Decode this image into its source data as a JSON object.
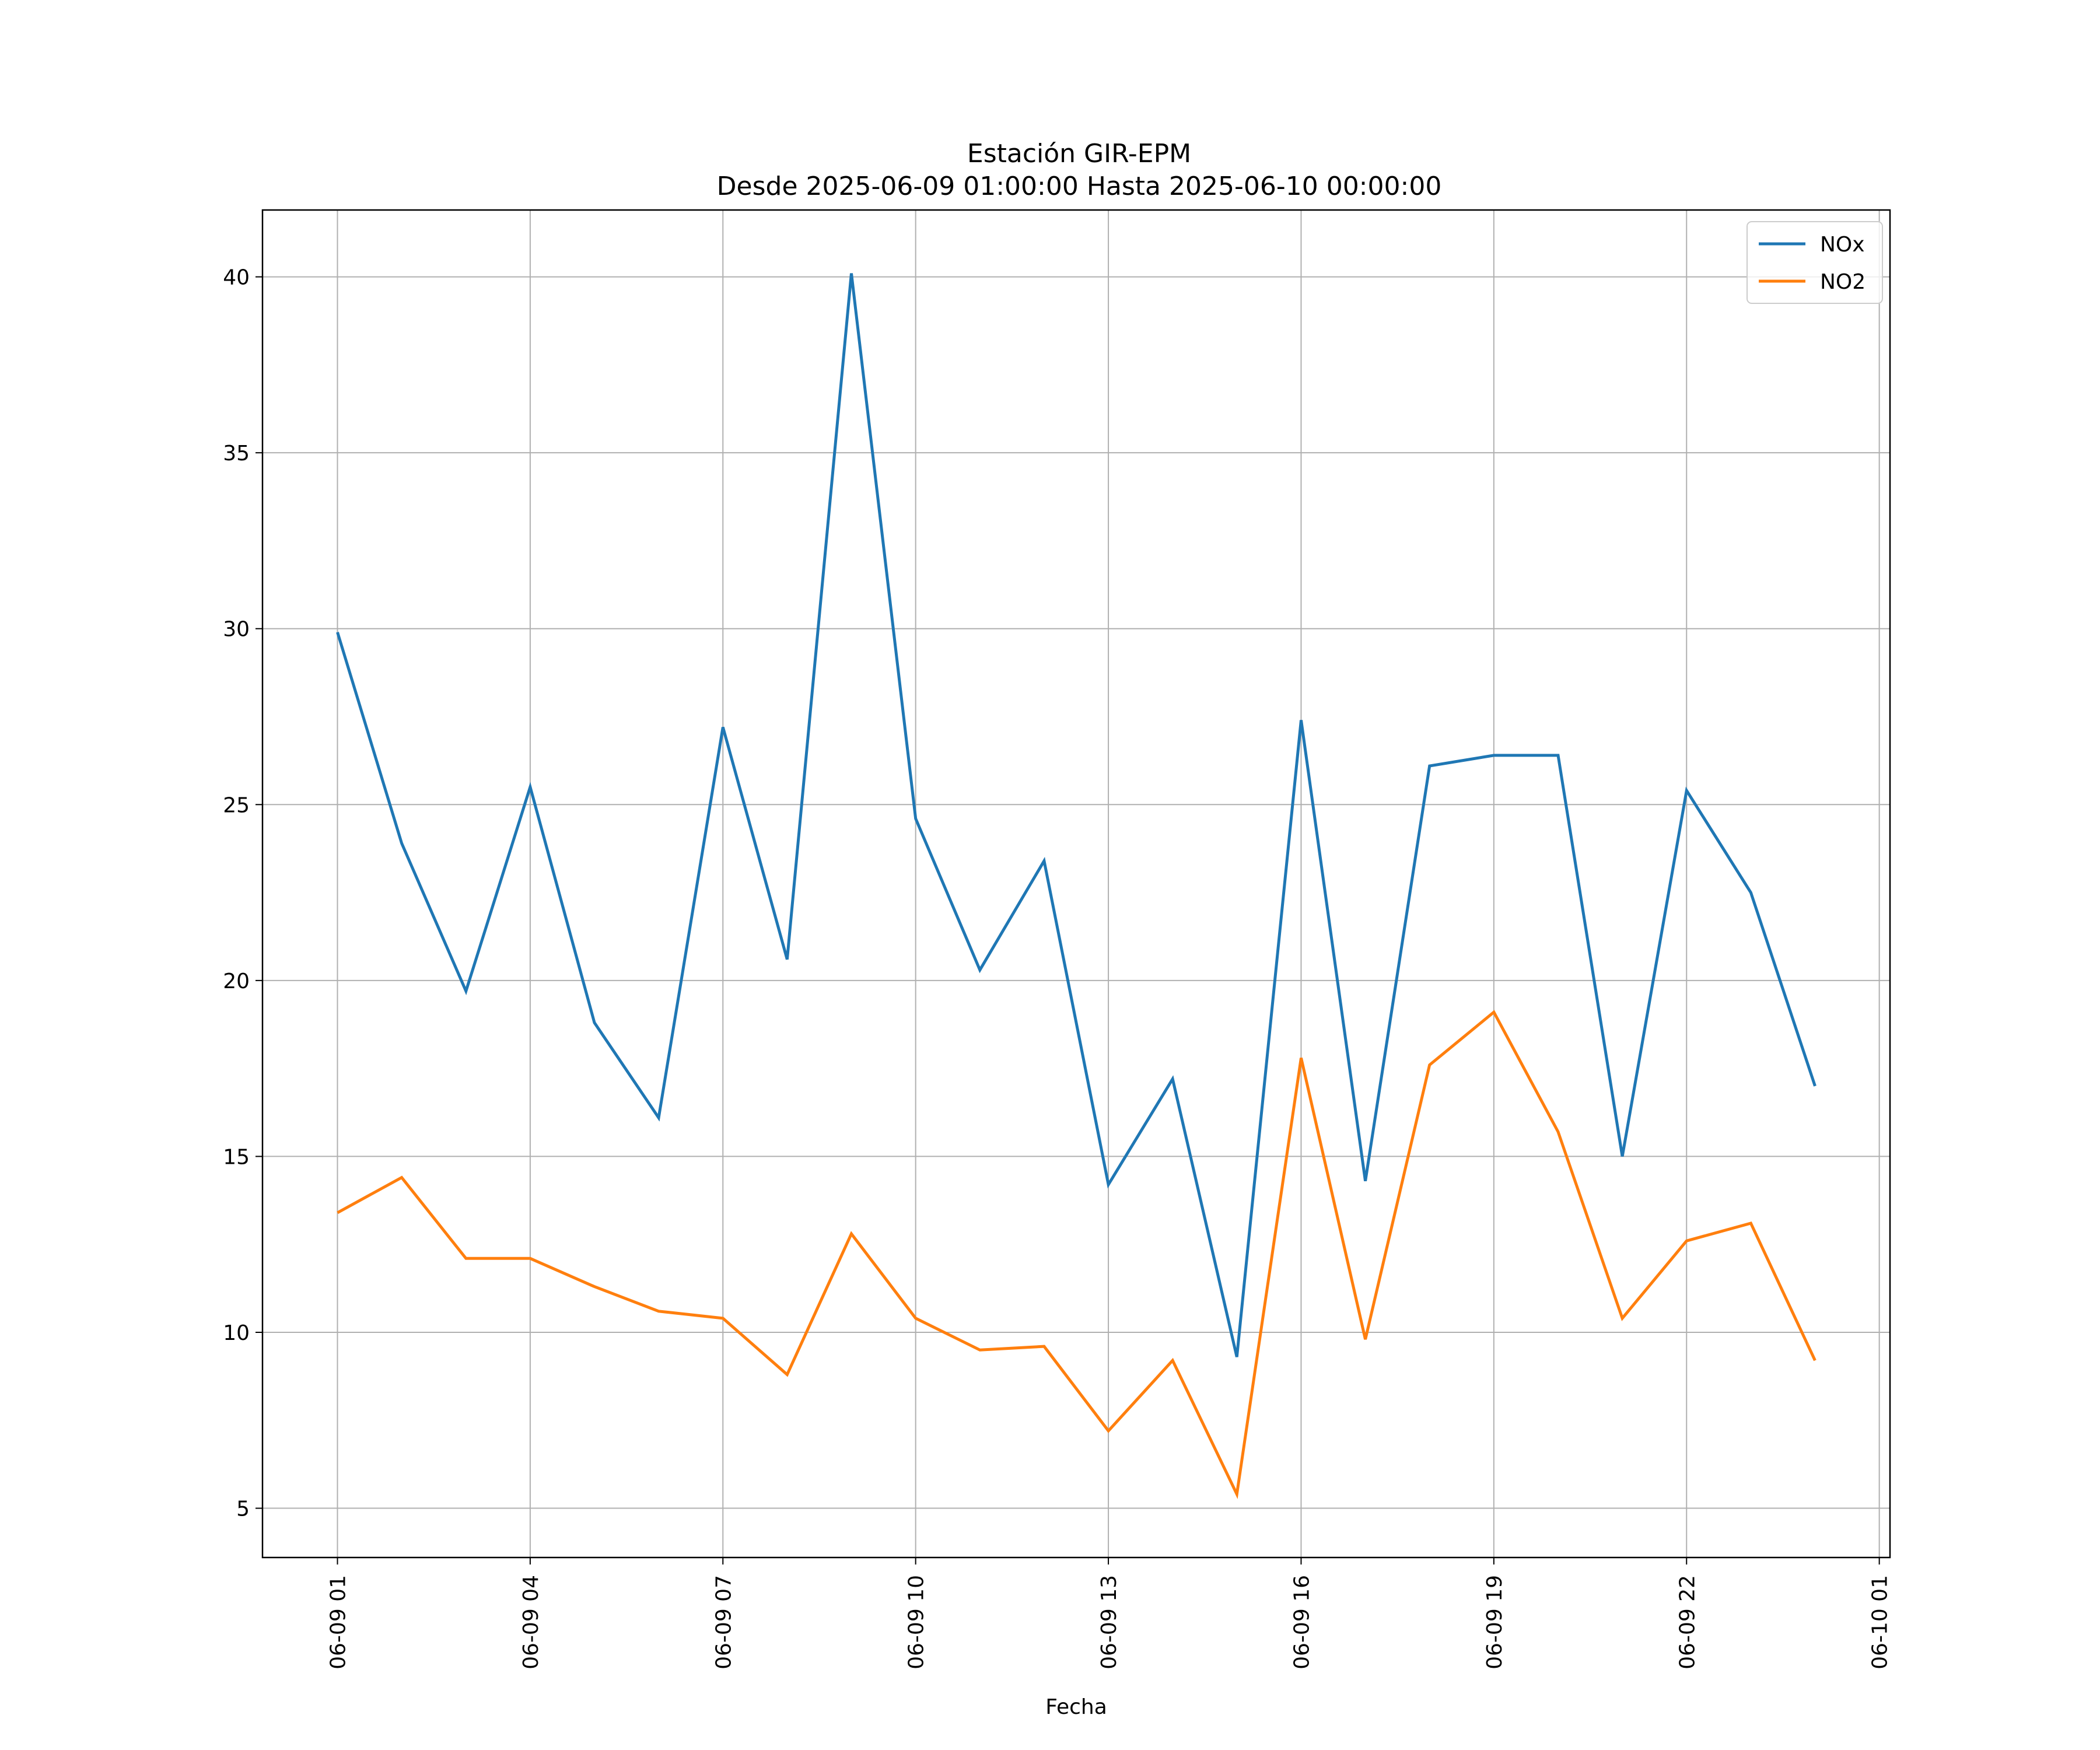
{
  "chart_data": {
    "type": "line",
    "title": "Estación GIR-EPM",
    "subtitle": "Desde 2025-06-09 01:00:00 Hasta 2025-06-10 00:00:00",
    "xlabel": "Fecha",
    "ylabel": "",
    "x": [
      "2025-06-09 01:00",
      "2025-06-09 02:00",
      "2025-06-09 03:00",
      "2025-06-09 04:00",
      "2025-06-09 05:00",
      "2025-06-09 06:00",
      "2025-06-09 07:00",
      "2025-06-09 08:00",
      "2025-06-09 09:00",
      "2025-06-09 10:00",
      "2025-06-09 11:00",
      "2025-06-09 12:00",
      "2025-06-09 13:00",
      "2025-06-09 14:00",
      "2025-06-09 15:00",
      "2025-06-09 16:00",
      "2025-06-09 17:00",
      "2025-06-09 18:00",
      "2025-06-09 19:00",
      "2025-06-09 20:00",
      "2025-06-09 21:00",
      "2025-06-09 22:00",
      "2025-06-09 23:00",
      "2025-06-10 00:00"
    ],
    "series": [
      {
        "name": "NOx",
        "color": "#1f77b4",
        "values": [
          29.9,
          23.9,
          19.7,
          25.5,
          18.8,
          16.1,
          27.2,
          20.6,
          40.1,
          24.6,
          20.3,
          23.4,
          14.2,
          17.2,
          9.3,
          27.4,
          14.3,
          26.1,
          26.4,
          26.4,
          15.0,
          25.4,
          22.5,
          17.0
        ]
      },
      {
        "name": "NO2",
        "color": "#ff7f0e",
        "values": [
          13.4,
          14.4,
          12.1,
          12.1,
          11.3,
          10.6,
          10.4,
          8.8,
          12.8,
          10.4,
          9.5,
          9.6,
          7.2,
          9.2,
          5.4,
          17.8,
          9.8,
          17.6,
          19.1,
          15.7,
          10.4,
          12.6,
          13.1,
          9.2
        ]
      }
    ],
    "x_ticks": [
      {
        "x": "2025-06-09 01:00",
        "label": "06-09 01"
      },
      {
        "x": "2025-06-09 04:00",
        "label": "06-09 04"
      },
      {
        "x": "2025-06-09 07:00",
        "label": "06-09 07"
      },
      {
        "x": "2025-06-09 10:00",
        "label": "06-09 10"
      },
      {
        "x": "2025-06-09 13:00",
        "label": "06-09 13"
      },
      {
        "x": "2025-06-09 16:00",
        "label": "06-09 16"
      },
      {
        "x": "2025-06-09 19:00",
        "label": "06-09 19"
      },
      {
        "x": "2025-06-09 22:00",
        "label": "06-09 22"
      },
      {
        "x": "2025-06-10 01:00",
        "label": "06-10 01"
      }
    ],
    "y_ticks": [
      5,
      10,
      15,
      20,
      25,
      30,
      35,
      40
    ],
    "xlim": [
      "2025-06-08 23:50",
      "2025-06-10 01:10"
    ],
    "ylim": [
      3.6,
      41.9
    ],
    "grid": true,
    "legend": "top-right"
  }
}
